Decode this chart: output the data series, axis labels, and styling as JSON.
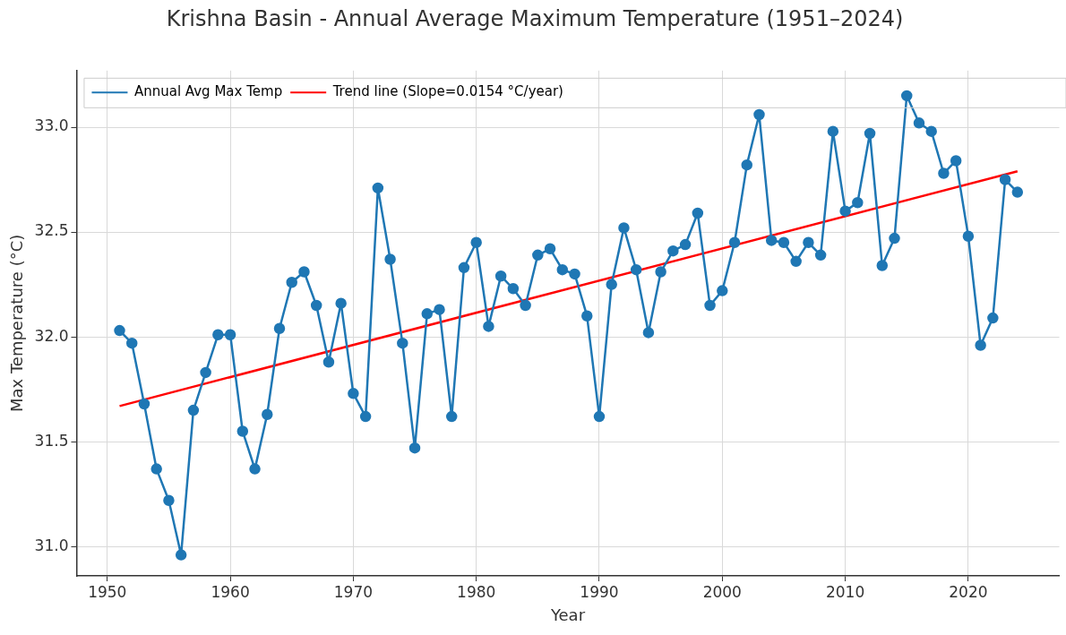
{
  "chart_data": {
    "type": "line",
    "title": "Krishna Basin - Annual Average Maximum Temperature (1951–2024)",
    "xlabel": "Year",
    "ylabel": "Max Temperature (°C)",
    "x": [
      1951,
      1952,
      1953,
      1954,
      1955,
      1956,
      1957,
      1958,
      1959,
      1960,
      1961,
      1962,
      1963,
      1964,
      1965,
      1966,
      1967,
      1968,
      1969,
      1970,
      1971,
      1972,
      1973,
      1974,
      1975,
      1976,
      1977,
      1978,
      1979,
      1980,
      1981,
      1982,
      1983,
      1984,
      1985,
      1986,
      1987,
      1988,
      1989,
      1990,
      1991,
      1992,
      1993,
      1994,
      1995,
      1996,
      1997,
      1998,
      1999,
      2000,
      2001,
      2002,
      2003,
      2004,
      2005,
      2006,
      2007,
      2008,
      2009,
      2010,
      2011,
      2012,
      2013,
      2014,
      2015,
      2016,
      2017,
      2018,
      2019,
      2020,
      2021,
      2022,
      2023,
      2024
    ],
    "series": [
      {
        "name": "Annual Avg Max Temp",
        "color": "#1f77b4",
        "marker": "circle",
        "values": [
          32.03,
          31.97,
          31.68,
          31.37,
          31.22,
          30.96,
          31.65,
          31.83,
          32.01,
          32.01,
          31.55,
          31.37,
          31.63,
          32.04,
          32.26,
          32.31,
          32.15,
          31.88,
          32.16,
          31.73,
          31.62,
          32.71,
          32.37,
          31.97,
          31.47,
          32.11,
          32.13,
          31.62,
          32.33,
          32.45,
          32.05,
          32.29,
          32.23,
          32.15,
          32.39,
          32.42,
          32.32,
          32.3,
          32.1,
          31.62,
          32.25,
          32.52,
          32.32,
          32.02,
          32.31,
          32.41,
          32.44,
          32.59,
          32.15,
          32.22,
          32.45,
          32.82,
          33.06,
          32.46,
          32.45,
          32.36,
          32.45,
          32.39,
          32.98,
          32.6,
          32.64,
          32.97,
          32.34,
          32.47,
          33.15,
          33.02,
          32.98,
          32.78,
          32.84,
          32.48,
          31.96,
          32.09,
          32.75,
          32.69
        ]
      },
      {
        "name": "Trend line (Slope=0.0154 °C/year)",
        "type": "line",
        "color": "#ff0000",
        "marker": "none",
        "x": [
          1951,
          2024
        ],
        "values": [
          31.67,
          32.79
        ]
      }
    ],
    "xlim": [
      1947.5,
      2027.4
    ],
    "xticks": [
      1950,
      1960,
      1970,
      1980,
      1990,
      2000,
      2010,
      2020
    ],
    "ylim": [
      30.86,
      33.27
    ],
    "yticks": [
      {
        "value": 31,
        "label": "31.0"
      },
      {
        "value": 31.5,
        "label": "31.5"
      },
      {
        "value": 32,
        "label": "32.0"
      },
      {
        "value": 32.5,
        "label": "32.5"
      },
      {
        "value": 33,
        "label": "33.0"
      }
    ],
    "grid": true,
    "legend": "top left"
  }
}
